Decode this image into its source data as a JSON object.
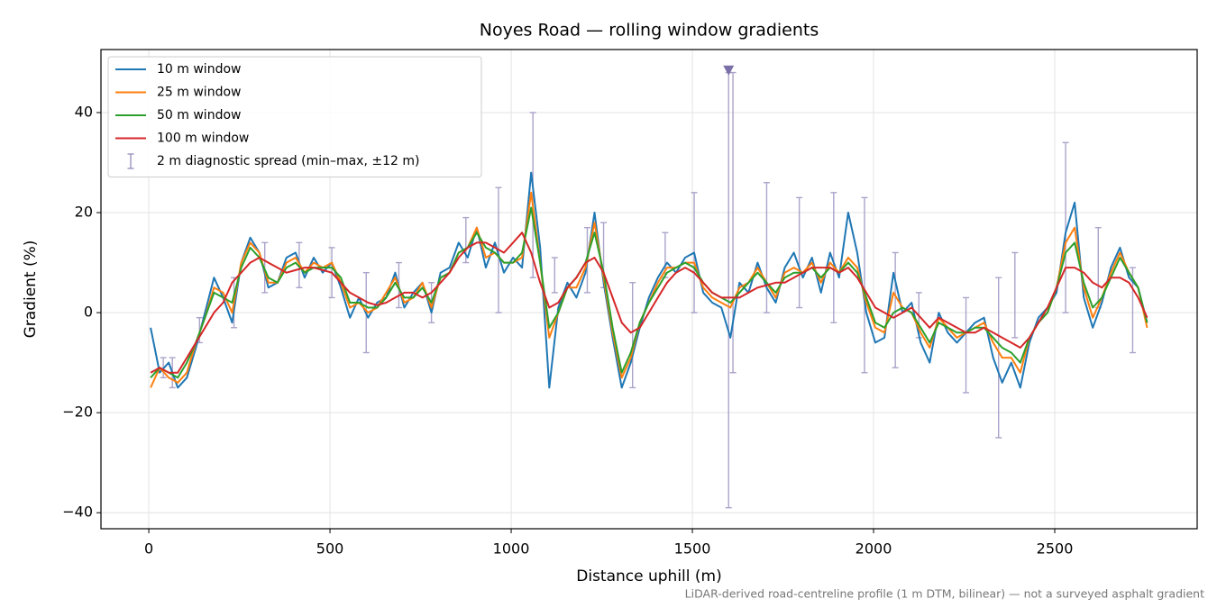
{
  "chart_data": {
    "type": "line",
    "title": "Noyes Road — rolling window gradients",
    "x_label": "Distance uphill (m)",
    "y_label": "Gradient (%)",
    "footnote": "LiDAR-derived road-centreline profile (1 m DTM, bilinear) — not a surveyed asphalt gradient",
    "xlim": [
      -132,
      2893
    ],
    "ylim": [
      -43.2,
      52.6
    ],
    "xticks": [
      0,
      500,
      1000,
      1500,
      2000,
      2500
    ],
    "yticks": [
      {
        "value": -40,
        "label": "−40"
      },
      {
        "value": -20,
        "label": "−20"
      },
      0,
      20,
      40
    ],
    "grid": true,
    "legend": "upper left",
    "x": [
      5,
      30,
      55,
      80,
      105,
      130,
      155,
      180,
      205,
      230,
      255,
      280,
      305,
      330,
      355,
      380,
      405,
      430,
      455,
      480,
      505,
      530,
      555,
      580,
      605,
      630,
      655,
      680,
      705,
      730,
      755,
      780,
      805,
      830,
      855,
      880,
      905,
      930,
      955,
      980,
      1005,
      1030,
      1055,
      1080,
      1105,
      1130,
      1155,
      1180,
      1205,
      1230,
      1255,
      1280,
      1305,
      1330,
      1355,
      1380,
      1405,
      1430,
      1455,
      1480,
      1505,
      1530,
      1555,
      1580,
      1605,
      1630,
      1655,
      1680,
      1705,
      1730,
      1755,
      1780,
      1805,
      1830,
      1855,
      1880,
      1905,
      1930,
      1955,
      1980,
      2005,
      2030,
      2055,
      2080,
      2105,
      2130,
      2155,
      2180,
      2205,
      2230,
      2255,
      2280,
      2305,
      2330,
      2355,
      2380,
      2405,
      2430,
      2455,
      2480,
      2505,
      2530,
      2555,
      2580,
      2605,
      2630,
      2655,
      2680,
      2705,
      2730,
      2755
    ],
    "series": [
      {
        "name": "10 m window",
        "color": "#1f77b4",
        "values": [
          -3,
          -12,
          -10,
          -15,
          -13,
          -7,
          0,
          7,
          3,
          -2,
          10,
          15,
          12,
          5,
          6,
          11,
          12,
          7,
          11,
          8,
          10,
          5,
          -1,
          3,
          -1,
          2,
          3,
          8,
          1,
          4,
          6,
          0,
          8,
          9,
          14,
          11,
          17,
          9,
          14,
          8,
          11,
          9,
          28,
          13,
          -15,
          1,
          6,
          3,
          8,
          20,
          6,
          -5,
          -15,
          -10,
          -3,
          3,
          7,
          10,
          8,
          11,
          12,
          4,
          2,
          1,
          -5,
          6,
          4,
          10,
          5,
          2,
          9,
          12,
          7,
          11,
          4,
          12,
          7,
          20,
          12,
          0,
          -6,
          -5,
          8,
          0,
          2,
          -6,
          -10,
          0,
          -4,
          -6,
          -4,
          -2,
          -1,
          -9,
          -14,
          -10,
          -15,
          -6,
          -1,
          1,
          4,
          16,
          22,
          3,
          -3,
          2,
          9,
          13,
          7,
          5,
          -2
        ]
      },
      {
        "name": "25 m window",
        "color": "#ff7f0e",
        "values": [
          -15,
          -11,
          -13,
          -14,
          -12,
          -6,
          -1,
          5,
          4,
          0,
          10,
          14,
          12,
          6,
          6,
          10,
          11,
          8,
          10,
          9,
          10,
          6,
          1,
          2,
          0,
          1,
          4,
          7,
          2,
          3,
          6,
          1,
          7,
          8,
          12,
          13,
          17,
          11,
          12,
          10,
          10,
          11,
          24,
          10,
          -5,
          0,
          5,
          5,
          9,
          18,
          7,
          -4,
          -13,
          -9,
          -2,
          2,
          6,
          9,
          9,
          10,
          10,
          5,
          3,
          2,
          1,
          5,
          6,
          9,
          6,
          3,
          8,
          9,
          8,
          10,
          6,
          10,
          8,
          11,
          9,
          2,
          -3,
          -4,
          4,
          1,
          0,
          -4,
          -7,
          -1,
          -3,
          -5,
          -4,
          -3,
          -2,
          -6,
          -9,
          -9,
          -12,
          -5,
          -2,
          0,
          5,
          14,
          17,
          5,
          -1,
          3,
          8,
          12,
          8,
          5,
          -3
        ]
      },
      {
        "name": "50 m window",
        "color": "#2ca02c",
        "values": [
          -13,
          -11,
          -12,
          -13,
          -10,
          -6,
          -1,
          4,
          3,
          2,
          9,
          13,
          11,
          7,
          6,
          9,
          10,
          8,
          9,
          9,
          9,
          7,
          2,
          2,
          1,
          1,
          3,
          6,
          3,
          3,
          5,
          2,
          7,
          8,
          12,
          13,
          16,
          13,
          12,
          10,
          10,
          12,
          21,
          10,
          -3,
          0,
          5,
          7,
          10,
          16,
          8,
          -3,
          -12,
          -8,
          -2,
          2,
          5,
          8,
          9,
          10,
          9,
          6,
          4,
          3,
          2,
          4,
          6,
          8,
          6,
          4,
          7,
          8,
          8,
          9,
          7,
          9,
          8,
          10,
          8,
          3,
          -2,
          -3,
          0,
          1,
          0,
          -3,
          -6,
          -2,
          -3,
          -4,
          -4,
          -3,
          -3,
          -5,
          -7,
          -8,
          -10,
          -5,
          -2,
          0,
          5,
          12,
          14,
          6,
          1,
          3,
          7,
          11,
          8,
          5,
          -2
        ]
      },
      {
        "name": "100 m window",
        "color": "#d62728",
        "values": [
          -12,
          -11,
          -12,
          -12,
          -9,
          -6,
          -3,
          0,
          2,
          6,
          8,
          10,
          11,
          10,
          9,
          8,
          8.5,
          9,
          9,
          8.5,
          8,
          6,
          4,
          3,
          2,
          1.5,
          2,
          3,
          4,
          4,
          3,
          4,
          6,
          8,
          11,
          13,
          14,
          14,
          13,
          12,
          14,
          16,
          12,
          6,
          1,
          2,
          5,
          7,
          10,
          11,
          8,
          3,
          -2,
          -4,
          -3,
          0,
          3,
          6,
          8,
          9,
          8,
          6,
          4,
          3,
          3,
          3,
          4,
          5,
          5.5,
          6,
          6,
          7,
          8,
          9,
          9,
          9,
          8,
          9,
          7,
          4,
          1,
          0,
          -1,
          0,
          1,
          -1,
          -3,
          -1,
          -2,
          -3,
          -4,
          -4,
          -3,
          -4,
          -5,
          -6,
          -7,
          -5,
          -2,
          1,
          5,
          9,
          9,
          8,
          6,
          5,
          7,
          7,
          6,
          3,
          -1
        ]
      }
    ],
    "error_bars": {
      "name": "2 m diagnostic spread (min–max, ±12 m)",
      "color": "#9d93c0",
      "x": [
        40,
        65,
        140,
        235,
        320,
        415,
        505,
        600,
        690,
        780,
        875,
        965,
        1060,
        1120,
        1210,
        1255,
        1335,
        1425,
        1505,
        1600,
        1612,
        1705,
        1795,
        1890,
        1975,
        2060,
        2125,
        2255,
        2345,
        2390,
        2530,
        2620,
        2715
      ],
      "low": [
        -13,
        -15,
        -6,
        -3,
        4,
        5,
        3,
        -8,
        1,
        -2,
        10,
        0,
        7,
        4,
        4,
        5,
        -15,
        7,
        0,
        -39,
        -12,
        0,
        1,
        -2,
        -12,
        -11,
        -5,
        -16,
        -25,
        -5,
        0,
        1,
        -8
      ],
      "high": [
        -9,
        -9,
        -1,
        7,
        14,
        14,
        13,
        8,
        10,
        6,
        19,
        25,
        40,
        11,
        17,
        18,
        6,
        16,
        24,
        48,
        48,
        26,
        23,
        24,
        23,
        12,
        4,
        3,
        7,
        12,
        34,
        17,
        9
      ]
    },
    "clip_marker": {
      "x": 1600,
      "y": 48.5,
      "color": "#7c6fa8"
    }
  }
}
